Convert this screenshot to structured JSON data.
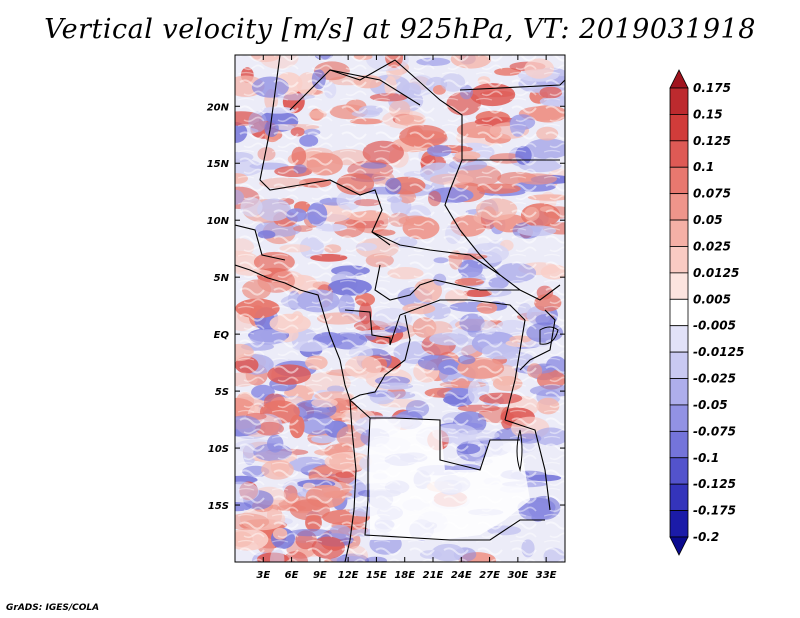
{
  "title": "Vertical velocity [m/s] at 925hPa, VT: 2019031918",
  "credit": "GrADS: IGES/COLA",
  "chart_data": {
    "type": "heatmap",
    "title": "Vertical velocity [m/s] at 925hPa, VT: 2019031918",
    "variable": "Vertical velocity",
    "units": "m/s",
    "level": "925hPa",
    "valid_time": "2019031918",
    "xlabel": "",
    "ylabel": "",
    "xlim": [
      0,
      35
    ],
    "ylim": [
      -20,
      24.5
    ],
    "x_ticks": [
      {
        "value": 3,
        "label": "3E"
      },
      {
        "value": 6,
        "label": "6E"
      },
      {
        "value": 9,
        "label": "9E"
      },
      {
        "value": 12,
        "label": "12E"
      },
      {
        "value": 15,
        "label": "15E"
      },
      {
        "value": 18,
        "label": "18E"
      },
      {
        "value": 21,
        "label": "21E"
      },
      {
        "value": 24,
        "label": "24E"
      },
      {
        "value": 27,
        "label": "27E"
      },
      {
        "value": 30,
        "label": "30E"
      },
      {
        "value": 33,
        "label": "33E"
      }
    ],
    "y_ticks": [
      {
        "value": 20,
        "label": "20N"
      },
      {
        "value": 15,
        "label": "15N"
      },
      {
        "value": 10,
        "label": "10N"
      },
      {
        "value": 5,
        "label": "5N"
      },
      {
        "value": 0,
        "label": "EQ"
      },
      {
        "value": -5,
        "label": "5S"
      },
      {
        "value": -10,
        "label": "10S"
      },
      {
        "value": -15,
        "label": "15S"
      }
    ],
    "colorbar": {
      "labels": [
        "0.175",
        "0.15",
        "0.125",
        "0.1",
        "0.075",
        "0.05",
        "0.025",
        "0.0125",
        "0.005",
        "-0.005",
        "-0.0125",
        "-0.025",
        "-0.05",
        "-0.075",
        "-0.1",
        "-0.125",
        "-0.175",
        "-0.2"
      ],
      "colors": [
        "#a0141e",
        "#bd2a2e",
        "#d13c3a",
        "#de5a55",
        "#e8786f",
        "#ef958b",
        "#f5b0a6",
        "#f9cbc3",
        "#fce4df",
        "#ffffff",
        "#e2e2f8",
        "#c9c9f2",
        "#aeaeec",
        "#9292e4",
        "#7474da",
        "#5353cc",
        "#3434bb",
        "#1b1ba8",
        "#0a0a8f"
      ]
    },
    "grid": false,
    "legend": "right"
  }
}
